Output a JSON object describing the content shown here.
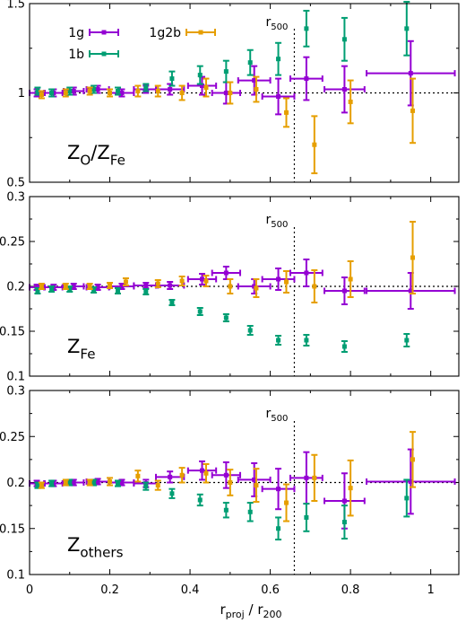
{
  "chart_data": {
    "type": "scatter",
    "xlabel": {
      "main": "r",
      "sub": "proj",
      "mid": " / r",
      "sub2": "200"
    },
    "xlim": [
      0,
      1.07
    ],
    "xticks": [
      "0",
      "0.2",
      "0.4",
      "0.6",
      "0.8",
      "1"
    ],
    "x_reference": {
      "value": 0.66,
      "label_main": "r",
      "label_sub": "500"
    },
    "colors": {
      "1g": "#9400d3",
      "1b": "#009e73",
      "1g2b": "#e69f00"
    },
    "legend": [
      {
        "name": "1g",
        "color": "#9400d3"
      },
      {
        "name": "1b",
        "color": "#009e73"
      },
      {
        "name": "1g2b",
        "color": "#e69f00"
      }
    ],
    "panels": [
      {
        "label": {
          "main": "Z",
          "sub": "O",
          "mid": "/Z",
          "sub2": "Fe"
        },
        "ylim": [
          0.5,
          1.5
        ],
        "yticks": [
          "0.5",
          "1",
          "1.5"
        ],
        "y_reference": 1,
        "series": [
          {
            "name": "1g",
            "points": [
              {
                "x": 0.018,
                "y": 1.0,
                "xerr": 0.018,
                "yerr": 0.02
              },
              {
                "x": 0.06,
                "y": 1.0,
                "xerr": 0.022,
                "yerr": 0.02
              },
              {
                "x": 0.11,
                "y": 1.01,
                "xerr": 0.025,
                "yerr": 0.02
              },
              {
                "x": 0.17,
                "y": 1.02,
                "xerr": 0.028,
                "yerr": 0.02
              },
              {
                "x": 0.23,
                "y": 1.0,
                "xerr": 0.03,
                "yerr": 0.02
              },
              {
                "x": 0.29,
                "y": 1.02,
                "xerr": 0.03,
                "yerr": 0.02
              },
              {
                "x": 0.35,
                "y": 1.02,
                "xerr": 0.035,
                "yerr": 0.03
              },
              {
                "x": 0.43,
                "y": 1.04,
                "xerr": 0.035,
                "yerr": 0.05
              },
              {
                "x": 0.49,
                "y": 1.0,
                "xerr": 0.035,
                "yerr": 0.06
              },
              {
                "x": 0.56,
                "y": 1.07,
                "xerr": 0.04,
                "yerr": 0.08
              },
              {
                "x": 0.62,
                "y": 0.98,
                "xerr": 0.04,
                "yerr": 0.1
              },
              {
                "x": 0.69,
                "y": 1.08,
                "xerr": 0.04,
                "yerr": 0.12
              },
              {
                "x": 0.785,
                "y": 1.02,
                "xerr": 0.05,
                "yerr": 0.13
              },
              {
                "x": 0.95,
                "y": 1.11,
                "xerr": 0.11,
                "yerr": 0.18
              }
            ]
          },
          {
            "name": "1b",
            "points": [
              {
                "x": 0.02,
                "y": 1.01,
                "yerr": 0.02
              },
              {
                "x": 0.055,
                "y": 1.0,
                "yerr": 0.02
              },
              {
                "x": 0.1,
                "y": 1.01,
                "yerr": 0.02
              },
              {
                "x": 0.16,
                "y": 1.02,
                "yerr": 0.02
              },
              {
                "x": 0.22,
                "y": 1.01,
                "yerr": 0.02
              },
              {
                "x": 0.29,
                "y": 1.03,
                "yerr": 0.02
              },
              {
                "x": 0.355,
                "y": 1.08,
                "yerr": 0.04
              },
              {
                "x": 0.425,
                "y": 1.1,
                "yerr": 0.05
              },
              {
                "x": 0.49,
                "y": 1.12,
                "yerr": 0.06
              },
              {
                "x": 0.55,
                "y": 1.17,
                "yerr": 0.07
              },
              {
                "x": 0.62,
                "y": 1.19,
                "yerr": 0.09
              },
              {
                "x": 0.69,
                "y": 1.36,
                "yerr": 0.1
              },
              {
                "x": 0.785,
                "y": 1.3,
                "yerr": 0.12
              },
              {
                "x": 0.94,
                "y": 1.36,
                "yerr": 0.15
              }
            ]
          },
          {
            "name": "1g2b",
            "points": [
              {
                "x": 0.03,
                "y": 0.99,
                "yerr": 0.02
              },
              {
                "x": 0.09,
                "y": 1.0,
                "yerr": 0.02
              },
              {
                "x": 0.15,
                "y": 1.01,
                "yerr": 0.02
              },
              {
                "x": 0.2,
                "y": 1.0,
                "yerr": 0.02
              },
              {
                "x": 0.27,
                "y": 1.01,
                "yerr": 0.03
              },
              {
                "x": 0.32,
                "y": 1.01,
                "yerr": 0.03
              },
              {
                "x": 0.38,
                "y": 1.0,
                "yerr": 0.04
              },
              {
                "x": 0.44,
                "y": 1.03,
                "yerr": 0.05
              },
              {
                "x": 0.5,
                "y": 1.0,
                "yerr": 0.06
              },
              {
                "x": 0.565,
                "y": 1.02,
                "yerr": 0.07
              },
              {
                "x": 0.64,
                "y": 0.89,
                "yerr": 0.08
              },
              {
                "x": 0.71,
                "y": 0.71,
                "yerr": 0.16
              },
              {
                "x": 0.8,
                "y": 0.95,
                "yerr": 0.12
              },
              {
                "x": 0.955,
                "y": 0.9,
                "yerr": 0.18
              }
            ]
          }
        ]
      },
      {
        "label": {
          "main": "Z",
          "sub": "Fe",
          "mid": "",
          "sub2": ""
        },
        "ylim": [
          0.1,
          0.3
        ],
        "yticks": [
          "0.1",
          "0.15",
          "0.2",
          "0.25",
          "0.3"
        ],
        "y_reference": 0.2,
        "series": [
          {
            "name": "1g",
            "points": [
              {
                "x": 0.018,
                "y": 0.199,
                "xerr": 0.018,
                "yerr": 0.003
              },
              {
                "x": 0.06,
                "y": 0.199,
                "xerr": 0.022,
                "yerr": 0.003
              },
              {
                "x": 0.11,
                "y": 0.2,
                "xerr": 0.025,
                "yerr": 0.003
              },
              {
                "x": 0.17,
                "y": 0.199,
                "xerr": 0.028,
                "yerr": 0.003
              },
              {
                "x": 0.23,
                "y": 0.2,
                "xerr": 0.03,
                "yerr": 0.003
              },
              {
                "x": 0.29,
                "y": 0.201,
                "xerr": 0.03,
                "yerr": 0.003
              },
              {
                "x": 0.35,
                "y": 0.201,
                "xerr": 0.035,
                "yerr": 0.004
              },
              {
                "x": 0.43,
                "y": 0.208,
                "xerr": 0.035,
                "yerr": 0.006
              },
              {
                "x": 0.49,
                "y": 0.215,
                "xerr": 0.035,
                "yerr": 0.007
              },
              {
                "x": 0.56,
                "y": 0.2,
                "xerr": 0.04,
                "yerr": 0.008
              },
              {
                "x": 0.62,
                "y": 0.208,
                "xerr": 0.04,
                "yerr": 0.012
              },
              {
                "x": 0.69,
                "y": 0.215,
                "xerr": 0.04,
                "yerr": 0.015
              },
              {
                "x": 0.785,
                "y": 0.195,
                "xerr": 0.05,
                "yerr": 0.015
              },
              {
                "x": 0.95,
                "y": 0.195,
                "xerr": 0.11,
                "yerr": 0.02
              }
            ]
          },
          {
            "name": "1b",
            "points": [
              {
                "x": 0.02,
                "y": 0.195,
                "yerr": 0.003
              },
              {
                "x": 0.055,
                "y": 0.197,
                "yerr": 0.003
              },
              {
                "x": 0.1,
                "y": 0.197,
                "yerr": 0.003
              },
              {
                "x": 0.16,
                "y": 0.196,
                "yerr": 0.003
              },
              {
                "x": 0.22,
                "y": 0.195,
                "yerr": 0.003
              },
              {
                "x": 0.29,
                "y": 0.194,
                "yerr": 0.003
              },
              {
                "x": 0.355,
                "y": 0.182,
                "yerr": 0.003
              },
              {
                "x": 0.425,
                "y": 0.172,
                "yerr": 0.004
              },
              {
                "x": 0.49,
                "y": 0.165,
                "yerr": 0.004
              },
              {
                "x": 0.55,
                "y": 0.151,
                "yerr": 0.005
              },
              {
                "x": 0.62,
                "y": 0.14,
                "yerr": 0.005
              },
              {
                "x": 0.69,
                "y": 0.14,
                "yerr": 0.006
              },
              {
                "x": 0.785,
                "y": 0.133,
                "yerr": 0.006
              },
              {
                "x": 0.94,
                "y": 0.14,
                "yerr": 0.007
              }
            ]
          },
          {
            "name": "1g2b",
            "points": [
              {
                "x": 0.03,
                "y": 0.2,
                "yerr": 0.003
              },
              {
                "x": 0.09,
                "y": 0.2,
                "yerr": 0.003
              },
              {
                "x": 0.15,
                "y": 0.2,
                "yerr": 0.003
              },
              {
                "x": 0.2,
                "y": 0.201,
                "yerr": 0.003
              },
              {
                "x": 0.24,
                "y": 0.205,
                "yerr": 0.004
              },
              {
                "x": 0.32,
                "y": 0.203,
                "yerr": 0.004
              },
              {
                "x": 0.38,
                "y": 0.206,
                "yerr": 0.005
              },
              {
                "x": 0.44,
                "y": 0.206,
                "yerr": 0.006
              },
              {
                "x": 0.5,
                "y": 0.2,
                "yerr": 0.008
              },
              {
                "x": 0.565,
                "y": 0.198,
                "yerr": 0.01
              },
              {
                "x": 0.64,
                "y": 0.205,
                "yerr": 0.012
              },
              {
                "x": 0.71,
                "y": 0.2,
                "yerr": 0.018
              },
              {
                "x": 0.8,
                "y": 0.208,
                "yerr": 0.02
              },
              {
                "x": 0.955,
                "y": 0.232,
                "yerr": 0.04
              }
            ]
          }
        ]
      },
      {
        "label": {
          "main": "Z",
          "sub": "others",
          "mid": "",
          "sub2": ""
        },
        "ylim": [
          0.1,
          0.3
        ],
        "yticks": [
          "0.1",
          "0.15",
          "0.2",
          "0.25",
          "0.3"
        ],
        "y_reference": 0.2,
        "series": [
          {
            "name": "1g",
            "points": [
              {
                "x": 0.018,
                "y": 0.199,
                "xerr": 0.018,
                "yerr": 0.003
              },
              {
                "x": 0.06,
                "y": 0.199,
                "xerr": 0.022,
                "yerr": 0.003
              },
              {
                "x": 0.11,
                "y": 0.2,
                "xerr": 0.025,
                "yerr": 0.003
              },
              {
                "x": 0.17,
                "y": 0.201,
                "xerr": 0.028,
                "yerr": 0.003
              },
              {
                "x": 0.23,
                "y": 0.2,
                "xerr": 0.03,
                "yerr": 0.003
              },
              {
                "x": 0.29,
                "y": 0.199,
                "xerr": 0.03,
                "yerr": 0.004
              },
              {
                "x": 0.35,
                "y": 0.206,
                "xerr": 0.035,
                "yerr": 0.006
              },
              {
                "x": 0.43,
                "y": 0.213,
                "xerr": 0.035,
                "yerr": 0.01
              },
              {
                "x": 0.49,
                "y": 0.208,
                "xerr": 0.035,
                "yerr": 0.014
              },
              {
                "x": 0.56,
                "y": 0.203,
                "xerr": 0.04,
                "yerr": 0.018
              },
              {
                "x": 0.62,
                "y": 0.193,
                "xerr": 0.04,
                "yerr": 0.022
              },
              {
                "x": 0.69,
                "y": 0.205,
                "xerr": 0.04,
                "yerr": 0.028
              },
              {
                "x": 0.785,
                "y": 0.18,
                "xerr": 0.05,
                "yerr": 0.03
              },
              {
                "x": 0.95,
                "y": 0.201,
                "xerr": 0.11,
                "yerr": 0.035
              }
            ]
          },
          {
            "name": "1b",
            "points": [
              {
                "x": 0.02,
                "y": 0.197,
                "yerr": 0.003
              },
              {
                "x": 0.055,
                "y": 0.199,
                "yerr": 0.003
              },
              {
                "x": 0.1,
                "y": 0.2,
                "yerr": 0.003
              },
              {
                "x": 0.16,
                "y": 0.2,
                "yerr": 0.003
              },
              {
                "x": 0.22,
                "y": 0.199,
                "yerr": 0.003
              },
              {
                "x": 0.29,
                "y": 0.196,
                "yerr": 0.004
              },
              {
                "x": 0.355,
                "y": 0.188,
                "yerr": 0.005
              },
              {
                "x": 0.425,
                "y": 0.181,
                "yerr": 0.006
              },
              {
                "x": 0.49,
                "y": 0.17,
                "yerr": 0.008
              },
              {
                "x": 0.55,
                "y": 0.168,
                "yerr": 0.01
              },
              {
                "x": 0.62,
                "y": 0.15,
                "yerr": 0.012
              },
              {
                "x": 0.69,
                "y": 0.162,
                "yerr": 0.015
              },
              {
                "x": 0.785,
                "y": 0.157,
                "yerr": 0.018
              },
              {
                "x": 0.94,
                "y": 0.183,
                "yerr": 0.02
              }
            ]
          },
          {
            "name": "1g2b",
            "points": [
              {
                "x": 0.03,
                "y": 0.197,
                "yerr": 0.003
              },
              {
                "x": 0.09,
                "y": 0.2,
                "yerr": 0.003
              },
              {
                "x": 0.15,
                "y": 0.2,
                "yerr": 0.003
              },
              {
                "x": 0.2,
                "y": 0.201,
                "yerr": 0.004
              },
              {
                "x": 0.27,
                "y": 0.207,
                "yerr": 0.006
              },
              {
                "x": 0.32,
                "y": 0.197,
                "yerr": 0.005
              },
              {
                "x": 0.38,
                "y": 0.208,
                "yerr": 0.008
              },
              {
                "x": 0.44,
                "y": 0.21,
                "yerr": 0.01
              },
              {
                "x": 0.5,
                "y": 0.2,
                "yerr": 0.014
              },
              {
                "x": 0.565,
                "y": 0.197,
                "yerr": 0.018
              },
              {
                "x": 0.64,
                "y": 0.178,
                "yerr": 0.02
              },
              {
                "x": 0.71,
                "y": 0.205,
                "yerr": 0.025
              },
              {
                "x": 0.8,
                "y": 0.194,
                "yerr": 0.03
              },
              {
                "x": 0.955,
                "y": 0.225,
                "yerr": 0.03
              }
            ]
          }
        ]
      }
    ]
  }
}
